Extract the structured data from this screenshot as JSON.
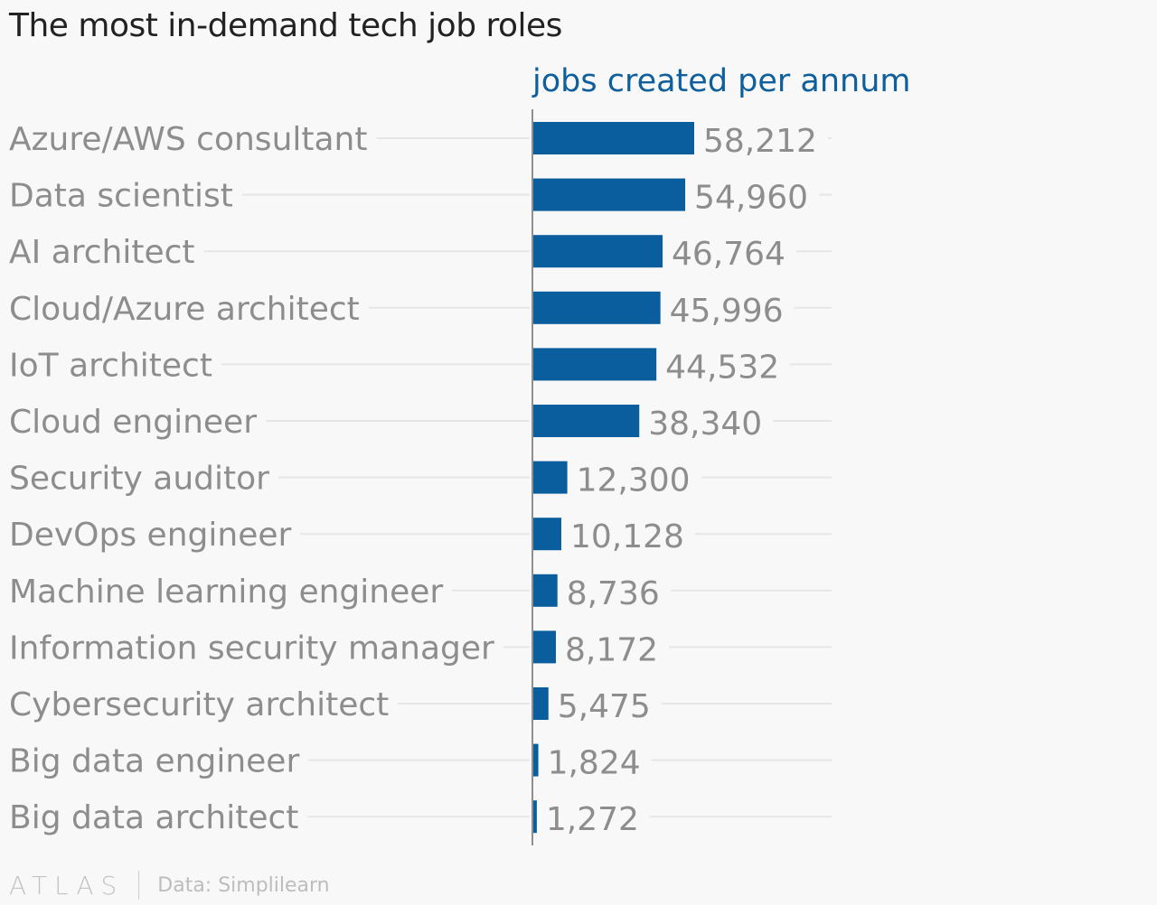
{
  "page": {
    "logo_text": "ATLAS",
    "source": "Data: Simplilearn"
  },
  "colors": {
    "bar": "#0b5e9e",
    "label_text": "#8d8d8d",
    "header_text": "#0e5f9b",
    "title_text": "#222222"
  },
  "chart_data": {
    "type": "bar",
    "orientation": "horizontal",
    "title": "The most in-demand tech job roles",
    "series": [
      {
        "name": "jobs created per annum",
        "values": [
          58212,
          54960,
          46764,
          45996,
          44532,
          38340,
          12300,
          10128,
          8736,
          8172,
          5475,
          1824,
          1272
        ]
      }
    ],
    "categories": [
      "Azure/AWS consultant",
      "Data scientist",
      "AI architect",
      "Cloud/Azure architect",
      "IoT architect",
      "Cloud engineer",
      "Security auditor",
      "DevOps engineer",
      "Machine learning engineer",
      "Information security manager",
      "Cybersecurity architect",
      "Big data engineer",
      "Big data architect"
    ],
    "value_labels": [
      "58,212",
      "54,960",
      "46,764",
      "45,996",
      "44,532",
      "38,340",
      "12,300",
      "10,128",
      "8,736",
      "8,172",
      "5,475",
      "1,824",
      "1,272"
    ],
    "xlim": [
      0,
      58212
    ],
    "grid": false,
    "legend": "none"
  }
}
